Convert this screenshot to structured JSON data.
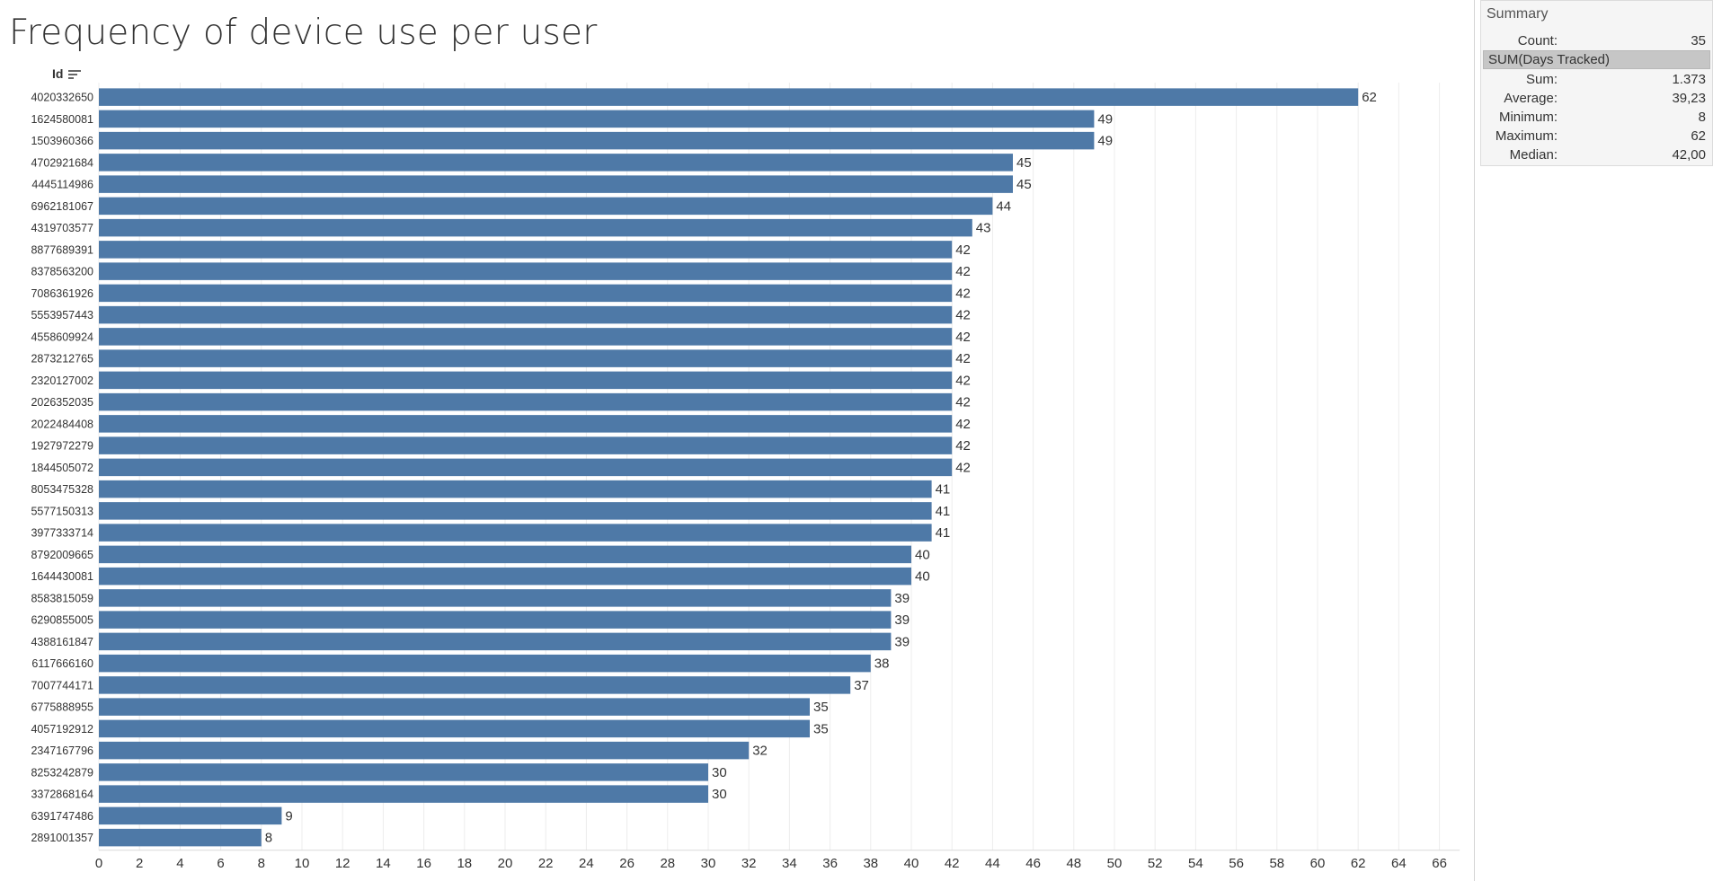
{
  "title": "Frequency of device use per user",
  "y_header": "Id",
  "colors": {
    "bar": "#4e79a7",
    "grid": "#ececec",
    "text": "#333333"
  },
  "summary": {
    "title": "Summary",
    "count_label": "Count:",
    "count_value": "35",
    "field": "SUM(Days Tracked)",
    "sum_label": "Sum:",
    "sum_value": "1.373",
    "avg_label": "Average:",
    "avg_value": "39,23",
    "min_label": "Minimum:",
    "min_value": "8",
    "max_label": "Maximum:",
    "max_value": "62",
    "median_label": "Median:",
    "median_value": "42,00"
  },
  "chart_data": {
    "type": "bar",
    "orientation": "horizontal",
    "title": "Frequency of device use per user",
    "ylabel": "Id",
    "xlabel": "",
    "xlim": [
      0,
      67
    ],
    "xticks": [
      0,
      2,
      4,
      6,
      8,
      10,
      12,
      14,
      16,
      18,
      20,
      22,
      24,
      26,
      28,
      30,
      32,
      34,
      36,
      38,
      40,
      42,
      44,
      46,
      48,
      50,
      52,
      54,
      56,
      58,
      60,
      62,
      64,
      66
    ],
    "grid": true,
    "categories": [
      "4020332650",
      "1624580081",
      "1503960366",
      "4702921684",
      "4445114986",
      "6962181067",
      "4319703577",
      "8877689391",
      "8378563200",
      "7086361926",
      "5553957443",
      "4558609924",
      "2873212765",
      "2320127002",
      "2026352035",
      "2022484408",
      "1927972279",
      "1844505072",
      "8053475328",
      "5577150313",
      "3977333714",
      "8792009665",
      "1644430081",
      "8583815059",
      "6290855005",
      "4388161847",
      "6117666160",
      "7007744171",
      "6775888955",
      "4057192912",
      "2347167796",
      "8253242879",
      "3372868164",
      "6391747486",
      "2891001357"
    ],
    "values": [
      62,
      49,
      49,
      45,
      45,
      44,
      43,
      42,
      42,
      42,
      42,
      42,
      42,
      42,
      42,
      42,
      42,
      42,
      41,
      41,
      41,
      40,
      40,
      39,
      39,
      39,
      38,
      37,
      35,
      35,
      32,
      30,
      30,
      9,
      8
    ]
  }
}
